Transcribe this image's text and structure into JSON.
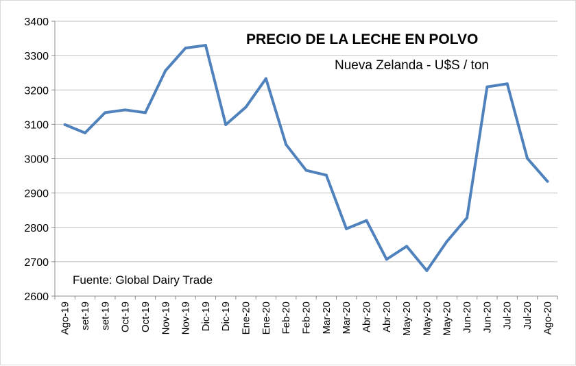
{
  "chart_data": {
    "type": "line",
    "title": "PRECIO DE LA LECHE EN POLVO",
    "subtitle": "Nueva Zelanda - U$S / ton",
    "source": "Fuente: Global Dairy Trade",
    "ylim": [
      2600,
      3400
    ],
    "yticks": [
      "2600",
      "2700",
      "2800",
      "2900",
      "3000",
      "3100",
      "3200",
      "3300",
      "3400"
    ],
    "grid": true,
    "categories": [
      "Ago-19",
      "set-19",
      "set-19",
      "Oct-19",
      "Oct-19",
      "Nov-19",
      "Nov-19",
      "Dic-19",
      "Dic-19",
      "Ene-20",
      "Ene-20",
      "Feb-20",
      "Feb-20",
      "Mar-20",
      "Mar-20",
      "Abr-20",
      "Abr-20",
      "May-20",
      "May-20",
      "May-20",
      "Jun-20",
      "Jun-20",
      "Jul-20",
      "Jul-20",
      "Ago-20"
    ],
    "series": [
      {
        "color": "#4f81bd",
        "values": [
          3099,
          3075,
          3134,
          3142,
          3134,
          3256,
          3322,
          3330,
          3099,
          3150,
          3233,
          3041,
          2966,
          2952,
          2796,
          2820,
          2707,
          2745,
          2674,
          2759,
          2828,
          3209,
          3218,
          3001,
          2934
        ]
      }
    ]
  }
}
